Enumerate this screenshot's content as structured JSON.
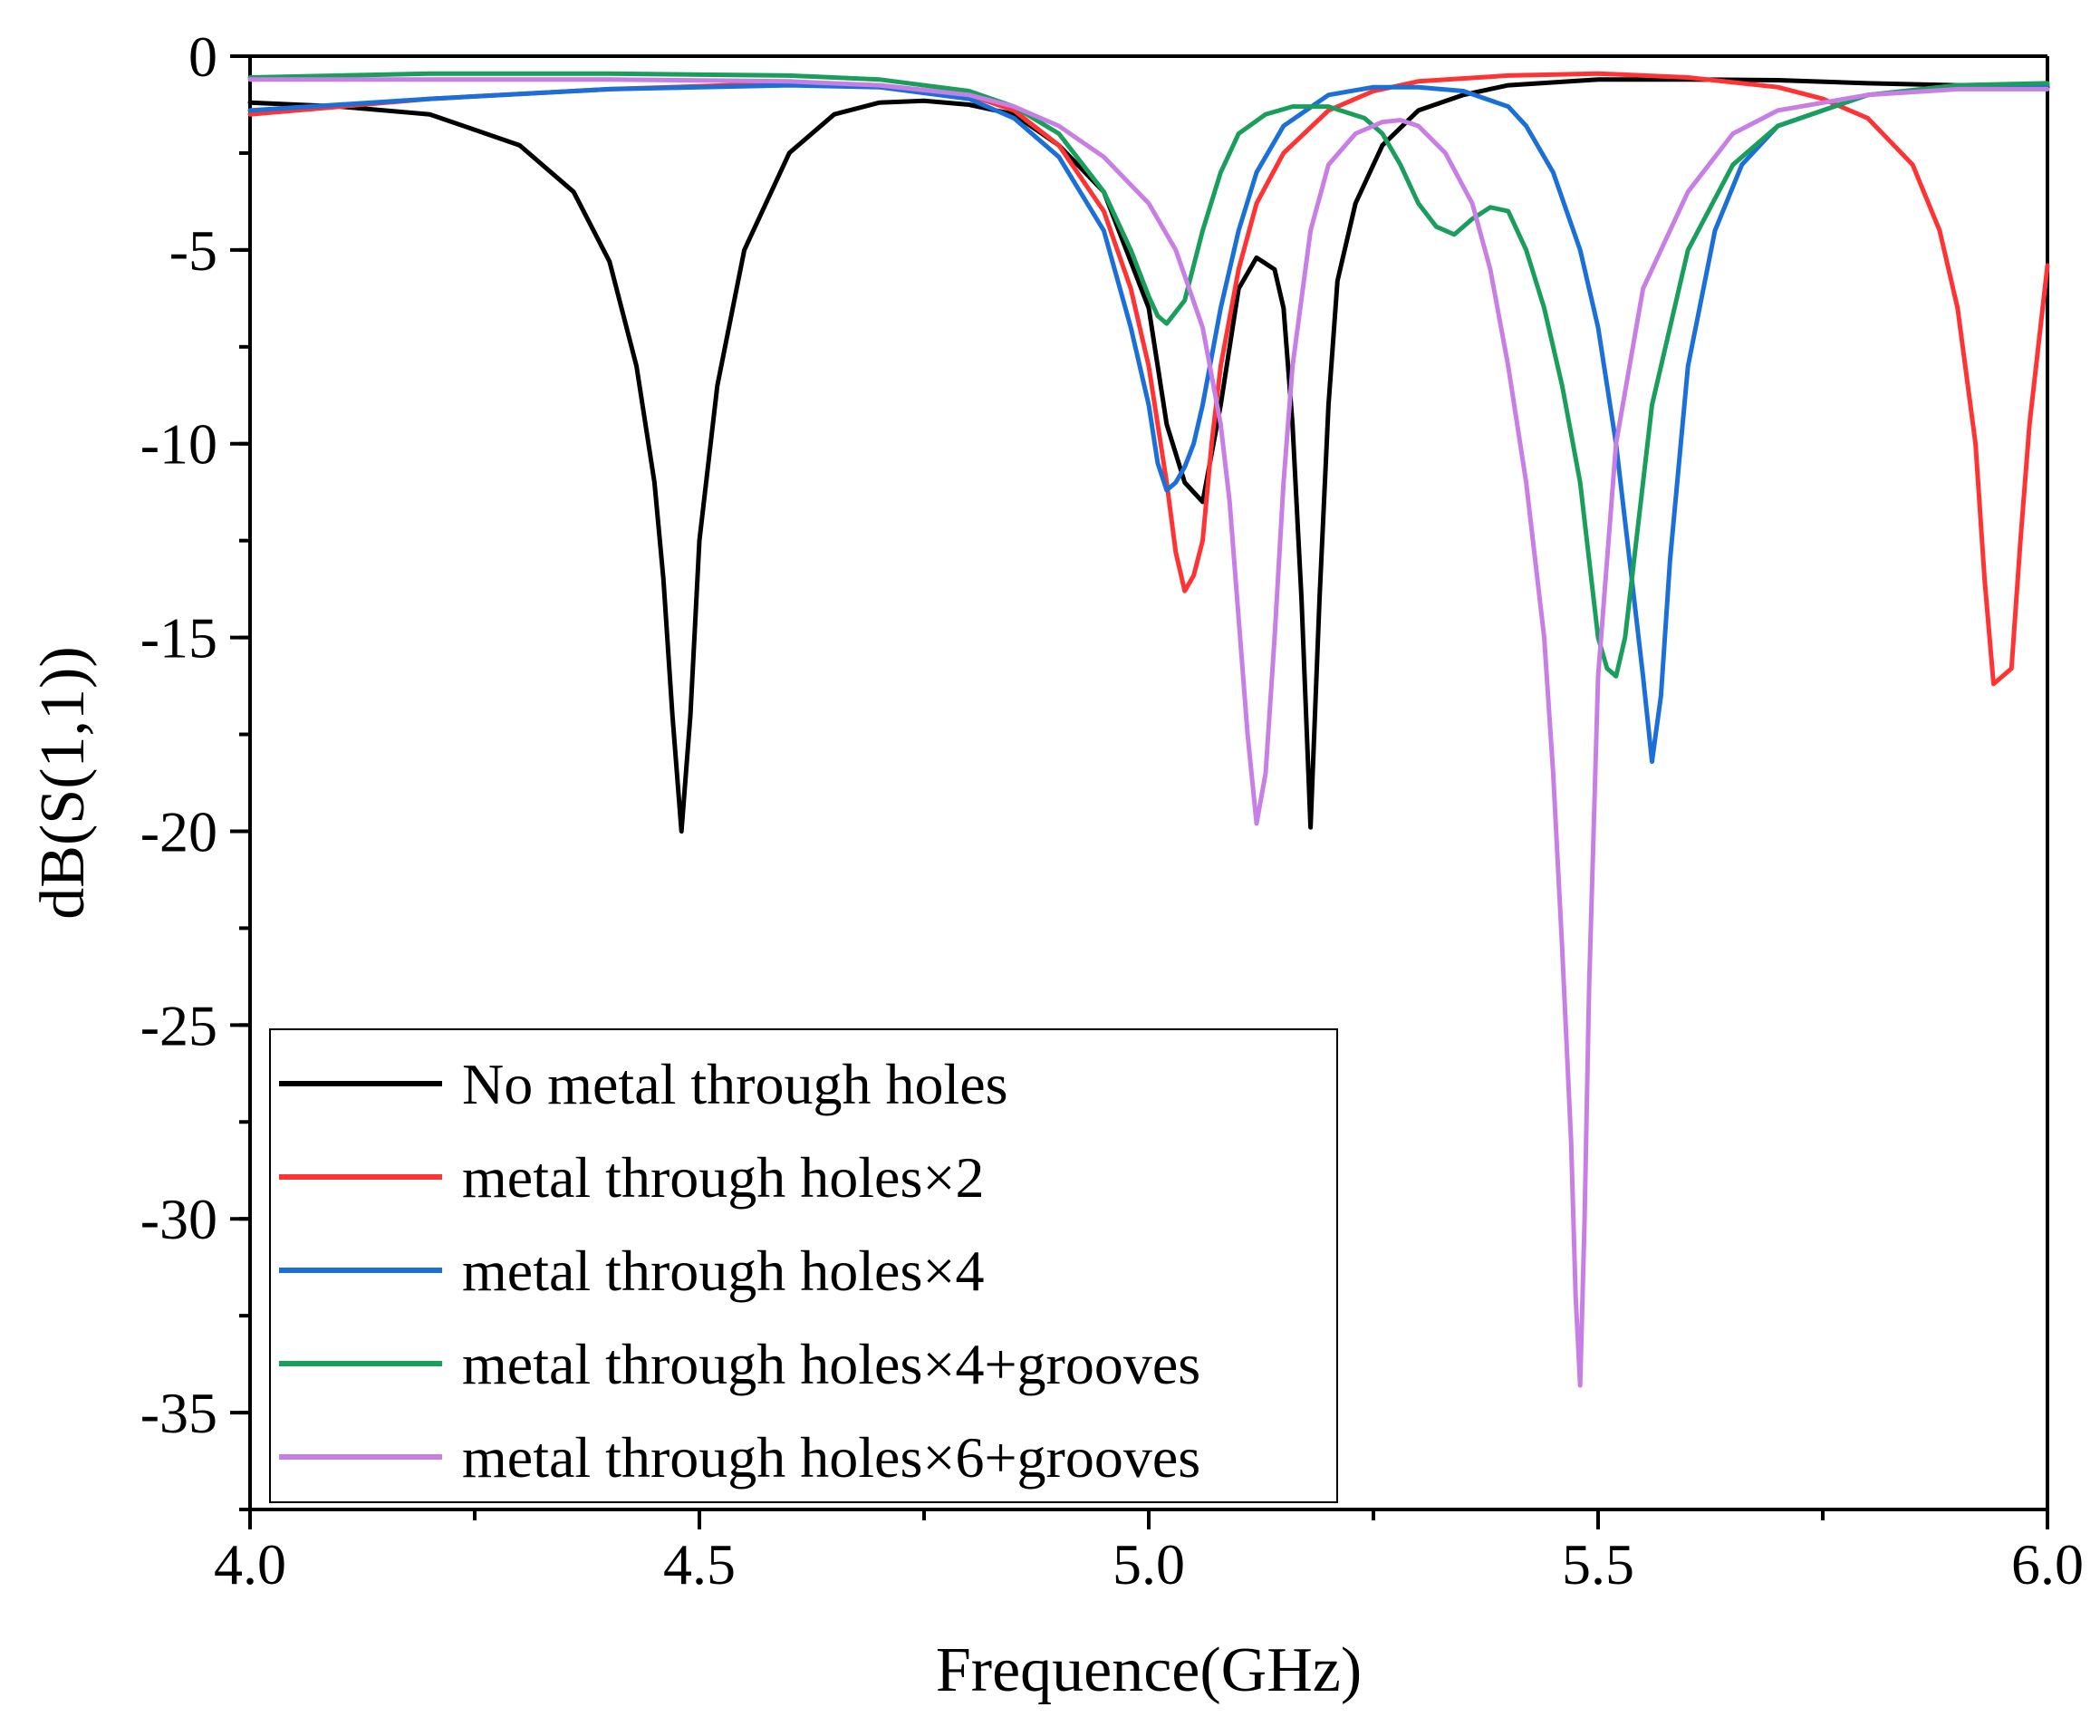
{
  "chart_data": {
    "type": "line",
    "title": "",
    "xlabel": "Frequence(GHz)",
    "ylabel": "dB(S(1,1))",
    "xlim": [
      4.0,
      6.0
    ],
    "ylim": [
      -37.5,
      0
    ],
    "xticks": [
      4.0,
      4.5,
      5.0,
      5.5,
      6.0
    ],
    "xtick_labels": [
      "4.0",
      "4.5",
      "5.0",
      "5.5",
      "6.0"
    ],
    "yticks": [
      0,
      -5,
      -10,
      -15,
      -20,
      -25,
      -30,
      -35
    ],
    "ytick_labels": [
      "0",
      "-5",
      "-10",
      "-15",
      "-20",
      "-25",
      "-30",
      "-35"
    ],
    "grid": false,
    "legend_position": "bottom-left",
    "series": [
      {
        "name": "No metal through holes",
        "color": "#000000",
        "x": [
          4.0,
          4.1,
          4.2,
          4.3,
          4.36,
          4.4,
          4.43,
          4.45,
          4.46,
          4.47,
          4.48,
          4.49,
          4.5,
          4.52,
          4.55,
          4.6,
          4.65,
          4.7,
          4.75,
          4.8,
          4.85,
          4.9,
          4.95,
          5.0,
          5.02,
          5.04,
          5.06,
          5.08,
          5.1,
          5.12,
          5.14,
          5.15,
          5.16,
          5.17,
          5.18,
          5.19,
          5.2,
          5.21,
          5.23,
          5.26,
          5.3,
          5.35,
          5.4,
          5.5,
          5.6,
          5.7,
          5.8,
          5.9,
          6.0
        ],
        "y": [
          -1.2,
          -1.3,
          -1.5,
          -2.3,
          -3.5,
          -5.3,
          -8.0,
          -11.0,
          -13.5,
          -17.0,
          -20.0,
          -17.0,
          -12.5,
          -8.5,
          -5.0,
          -2.5,
          -1.5,
          -1.2,
          -1.15,
          -1.25,
          -1.5,
          -2.3,
          -3.5,
          -6.5,
          -9.5,
          -11.0,
          -11.5,
          -9.0,
          -6.0,
          -5.2,
          -5.5,
          -6.5,
          -9.5,
          -14.0,
          -19.9,
          -14.0,
          -9.0,
          -5.8,
          -3.8,
          -2.3,
          -1.4,
          -1.0,
          -0.75,
          -0.6,
          -0.6,
          -0.62,
          -0.7,
          -0.75,
          -0.8
        ]
      },
      {
        "name": "metal through holes×2",
        "color": "#ff3333",
        "x": [
          4.0,
          4.2,
          4.4,
          4.6,
          4.7,
          4.8,
          4.85,
          4.9,
          4.95,
          4.98,
          5.0,
          5.02,
          5.03,
          5.04,
          5.05,
          5.06,
          5.07,
          5.08,
          5.1,
          5.12,
          5.15,
          5.2,
          5.25,
          5.3,
          5.4,
          5.5,
          5.6,
          5.7,
          5.75,
          5.8,
          5.85,
          5.88,
          5.9,
          5.92,
          5.93,
          5.94,
          5.95,
          5.96,
          5.97,
          5.98,
          6.0
        ],
        "y": [
          -1.5,
          -1.1,
          -0.85,
          -0.7,
          -0.75,
          -1.0,
          -1.4,
          -2.3,
          -4.0,
          -6.0,
          -8.0,
          -11.0,
          -12.8,
          -13.8,
          -13.4,
          -12.5,
          -10.0,
          -8.0,
          -5.5,
          -3.8,
          -2.5,
          -1.4,
          -0.9,
          -0.65,
          -0.5,
          -0.45,
          -0.55,
          -0.8,
          -1.1,
          -1.6,
          -2.8,
          -4.5,
          -6.5,
          -10.0,
          -13.5,
          -16.2,
          -16.0,
          -15.8,
          -12.5,
          -9.5,
          -5.4
        ]
      },
      {
        "name": "metal through holes×4",
        "color": "#1a6fd9",
        "x": [
          4.0,
          4.2,
          4.4,
          4.6,
          4.7,
          4.8,
          4.85,
          4.9,
          4.95,
          4.98,
          5.0,
          5.01,
          5.02,
          5.03,
          5.04,
          5.05,
          5.06,
          5.08,
          5.1,
          5.12,
          5.15,
          5.2,
          5.25,
          5.3,
          5.35,
          5.4,
          5.42,
          5.45,
          5.48,
          5.5,
          5.52,
          5.54,
          5.55,
          5.56,
          5.57,
          5.58,
          5.6,
          5.63,
          5.66,
          5.7,
          5.8,
          5.9,
          6.0
        ],
        "y": [
          -1.4,
          -1.1,
          -0.85,
          -0.75,
          -0.8,
          -1.1,
          -1.6,
          -2.6,
          -4.5,
          -7.0,
          -9.0,
          -10.5,
          -11.2,
          -11.0,
          -10.6,
          -10.0,
          -9.0,
          -6.5,
          -4.5,
          -3.0,
          -1.8,
          -1.0,
          -0.8,
          -0.8,
          -0.9,
          -1.3,
          -1.8,
          -3.0,
          -5.0,
          -7.0,
          -10.0,
          -14.0,
          -16.0,
          -18.2,
          -16.5,
          -13.0,
          -8.0,
          -4.5,
          -2.8,
          -1.8,
          -1.0,
          -0.8,
          -0.75
        ]
      },
      {
        "name": "metal through holes×4+grooves",
        "color": "#1a9e5c",
        "x": [
          4.0,
          4.2,
          4.4,
          4.6,
          4.7,
          4.8,
          4.85,
          4.9,
          4.95,
          4.98,
          5.0,
          5.01,
          5.02,
          5.03,
          5.04,
          5.06,
          5.08,
          5.1,
          5.13,
          5.16,
          5.2,
          5.24,
          5.26,
          5.28,
          5.3,
          5.32,
          5.34,
          5.36,
          5.38,
          5.4,
          5.42,
          5.44,
          5.46,
          5.48,
          5.49,
          5.5,
          5.51,
          5.52,
          5.53,
          5.54,
          5.56,
          5.6,
          5.65,
          5.7,
          5.8,
          5.9,
          6.0
        ],
        "y": [
          -0.55,
          -0.45,
          -0.45,
          -0.5,
          -0.6,
          -0.9,
          -1.3,
          -2.0,
          -3.5,
          -5.0,
          -6.2,
          -6.7,
          -6.9,
          -6.6,
          -6.3,
          -4.5,
          -3.0,
          -2.0,
          -1.5,
          -1.3,
          -1.3,
          -1.6,
          -2.0,
          -2.8,
          -3.8,
          -4.4,
          -4.6,
          -4.2,
          -3.9,
          -4.0,
          -5.0,
          -6.5,
          -8.5,
          -11.0,
          -13.0,
          -15.0,
          -15.8,
          -16.0,
          -15.0,
          -13.0,
          -9.0,
          -5.0,
          -2.8,
          -1.8,
          -1.0,
          -0.75,
          -0.7
        ]
      },
      {
        "name": "metal through holes×6+grooves",
        "color": "#c77fe6",
        "x": [
          4.0,
          4.2,
          4.4,
          4.6,
          4.7,
          4.8,
          4.85,
          4.9,
          4.95,
          5.0,
          5.03,
          5.06,
          5.08,
          5.09,
          5.1,
          5.11,
          5.12,
          5.13,
          5.14,
          5.15,
          5.16,
          5.18,
          5.2,
          5.23,
          5.26,
          5.28,
          5.3,
          5.33,
          5.36,
          5.38,
          5.4,
          5.42,
          5.44,
          5.45,
          5.46,
          5.47,
          5.475,
          5.48,
          5.485,
          5.49,
          5.5,
          5.52,
          5.55,
          5.6,
          5.65,
          5.7,
          5.8,
          5.9,
          6.0
        ],
        "y": [
          -0.6,
          -0.6,
          -0.6,
          -0.65,
          -0.75,
          -1.0,
          -1.3,
          -1.8,
          -2.6,
          -3.8,
          -5.0,
          -7.0,
          -9.5,
          -11.5,
          -14.5,
          -17.5,
          -19.8,
          -18.5,
          -15.0,
          -11.0,
          -8.0,
          -4.5,
          -2.8,
          -2.0,
          -1.7,
          -1.65,
          -1.8,
          -2.5,
          -3.8,
          -5.5,
          -8.0,
          -11.0,
          -15.0,
          -18.5,
          -23.0,
          -28.0,
          -32.0,
          -34.3,
          -30.0,
          -24.0,
          -16.0,
          -10.0,
          -6.0,
          -3.5,
          -2.0,
          -1.4,
          -1.0,
          -0.85,
          -0.85
        ]
      }
    ]
  }
}
